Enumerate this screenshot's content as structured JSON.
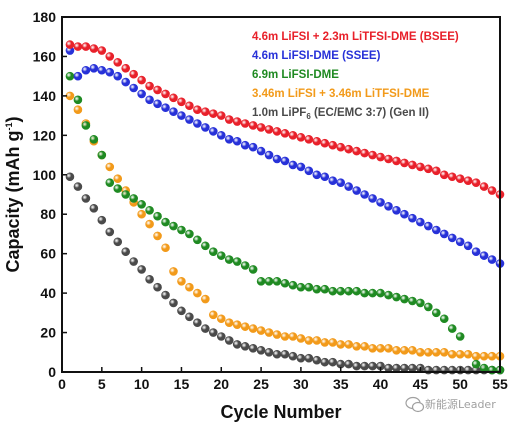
{
  "chart_data": {
    "type": "scatter",
    "xlabel": "Cycle Number",
    "ylabel": {
      "main": "Capacity (mAh g",
      "sup": "-1",
      "end": ")"
    },
    "xlim": [
      0,
      55
    ],
    "ylim": [
      0,
      180
    ],
    "xticks": [
      "0",
      "5",
      "10",
      "15",
      "20",
      "25",
      "30",
      "35",
      "40",
      "45",
      "50",
      "55"
    ],
    "yticks": [
      "0",
      "20",
      "40",
      "60",
      "80",
      "100",
      "120",
      "140",
      "160",
      "180"
    ],
    "legend_position": "top-right",
    "series": [
      {
        "legend": {
          "parts": [
            {
              "t": "4.6m LiFSI + 2.3m LiTFSI-DME (BSEE)"
            }
          ]
        },
        "color": "#e8202a",
        "values": [
          [
            1,
            166
          ],
          [
            2,
            165
          ],
          [
            3,
            165
          ],
          [
            4,
            164
          ],
          [
            5,
            163
          ],
          [
            6,
            160
          ],
          [
            7,
            157
          ],
          [
            8,
            154
          ],
          [
            9,
            151
          ],
          [
            10,
            148
          ],
          [
            11,
            145
          ],
          [
            12,
            143
          ],
          [
            13,
            141
          ],
          [
            14,
            139
          ],
          [
            15,
            137
          ],
          [
            16,
            135
          ],
          [
            17,
            133
          ],
          [
            18,
            132
          ],
          [
            19,
            131
          ],
          [
            20,
            130
          ],
          [
            21,
            128
          ],
          [
            22,
            127
          ],
          [
            23,
            126
          ],
          [
            24,
            125
          ],
          [
            25,
            124
          ],
          [
            26,
            123
          ],
          [
            27,
            122
          ],
          [
            28,
            121
          ],
          [
            29,
            120
          ],
          [
            30,
            119
          ],
          [
            31,
            118
          ],
          [
            32,
            117
          ],
          [
            33,
            116
          ],
          [
            34,
            115
          ],
          [
            35,
            114
          ],
          [
            36,
            113
          ],
          [
            37,
            112
          ],
          [
            38,
            111
          ],
          [
            39,
            110
          ],
          [
            40,
            109
          ],
          [
            41,
            108
          ],
          [
            42,
            107
          ],
          [
            43,
            106
          ],
          [
            44,
            105
          ],
          [
            45,
            104
          ],
          [
            46,
            103
          ],
          [
            47,
            102
          ],
          [
            48,
            100
          ],
          [
            49,
            99
          ],
          [
            50,
            98
          ],
          [
            51,
            97
          ],
          [
            52,
            96
          ],
          [
            53,
            94
          ],
          [
            54,
            92
          ],
          [
            55,
            90
          ]
        ]
      },
      {
        "legend": {
          "parts": [
            {
              "t": "4.6m LiFSI-DME (SSEE)"
            }
          ]
        },
        "color": "#2731d8",
        "values": [
          [
            1,
            163
          ],
          [
            2,
            150
          ],
          [
            3,
            153
          ],
          [
            4,
            154
          ],
          [
            5,
            153
          ],
          [
            6,
            152
          ],
          [
            7,
            150
          ],
          [
            8,
            147
          ],
          [
            9,
            144
          ],
          [
            10,
            141
          ],
          [
            11,
            138
          ],
          [
            12,
            136
          ],
          [
            13,
            134
          ],
          [
            14,
            132
          ],
          [
            15,
            130
          ],
          [
            16,
            128
          ],
          [
            17,
            126
          ],
          [
            18,
            124
          ],
          [
            19,
            122
          ],
          [
            20,
            120
          ],
          [
            21,
            118
          ],
          [
            22,
            117
          ],
          [
            23,
            115
          ],
          [
            24,
            114
          ],
          [
            25,
            112
          ],
          [
            26,
            110
          ],
          [
            27,
            108
          ],
          [
            28,
            107
          ],
          [
            29,
            105
          ],
          [
            30,
            104
          ],
          [
            31,
            102
          ],
          [
            32,
            100
          ],
          [
            33,
            99
          ],
          [
            34,
            97
          ],
          [
            35,
            96
          ],
          [
            36,
            94
          ],
          [
            37,
            92
          ],
          [
            38,
            90
          ],
          [
            39,
            88
          ],
          [
            40,
            86
          ],
          [
            41,
            84
          ],
          [
            42,
            82
          ],
          [
            43,
            80
          ],
          [
            44,
            78
          ],
          [
            45,
            76
          ],
          [
            46,
            74
          ],
          [
            47,
            72
          ],
          [
            48,
            70
          ],
          [
            49,
            68
          ],
          [
            50,
            66
          ],
          [
            51,
            64
          ],
          [
            52,
            61
          ],
          [
            53,
            59
          ],
          [
            54,
            57
          ],
          [
            55,
            55
          ]
        ]
      },
      {
        "legend": {
          "parts": [
            {
              "t": "6.9m LiFSI-DME"
            }
          ]
        },
        "color": "#1f8a22",
        "values": [
          [
            1,
            150
          ],
          [
            2,
            138
          ],
          [
            3,
            125
          ],
          [
            4,
            118
          ],
          [
            5,
            110
          ],
          [
            6,
            96
          ],
          [
            7,
            93
          ],
          [
            8,
            90
          ],
          [
            9,
            88
          ],
          [
            10,
            85
          ],
          [
            11,
            82
          ],
          [
            12,
            79
          ],
          [
            13,
            76
          ],
          [
            14,
            74
          ],
          [
            15,
            72
          ],
          [
            16,
            70
          ],
          [
            17,
            67
          ],
          [
            18,
            64
          ],
          [
            19,
            61
          ],
          [
            20,
            59
          ],
          [
            21,
            57
          ],
          [
            22,
            56
          ],
          [
            23,
            54
          ],
          [
            24,
            52
          ],
          [
            25,
            46
          ],
          [
            26,
            46
          ],
          [
            27,
            46
          ],
          [
            28,
            45
          ],
          [
            29,
            44
          ],
          [
            30,
            43
          ],
          [
            31,
            43
          ],
          [
            32,
            42
          ],
          [
            33,
            42
          ],
          [
            34,
            41
          ],
          [
            35,
            41
          ],
          [
            36,
            41
          ],
          [
            37,
            41
          ],
          [
            38,
            40
          ],
          [
            39,
            40
          ],
          [
            40,
            40
          ],
          [
            41,
            39
          ],
          [
            42,
            38
          ],
          [
            43,
            37
          ],
          [
            44,
            36
          ],
          [
            45,
            35
          ],
          [
            46,
            33
          ],
          [
            47,
            30
          ],
          [
            48,
            27
          ],
          [
            49,
            22
          ],
          [
            50,
            18
          ],
          [
            52,
            4
          ],
          [
            53,
            2
          ],
          [
            54,
            1
          ],
          [
            55,
            1
          ]
        ]
      },
      {
        "legend": {
          "parts": [
            {
              "t": "3.46m LiFSI + 3.46m LiTFSI-DME"
            }
          ]
        },
        "color": "#f29a1a",
        "values": [
          [
            1,
            140
          ],
          [
            2,
            133
          ],
          [
            3,
            126
          ],
          [
            4,
            117
          ],
          [
            5,
            110
          ],
          [
            6,
            104
          ],
          [
            7,
            98
          ],
          [
            8,
            92
          ],
          [
            9,
            86
          ],
          [
            10,
            80
          ],
          [
            11,
            75
          ],
          [
            12,
            69
          ],
          [
            13,
            63
          ],
          [
            14,
            51
          ],
          [
            15,
            46
          ],
          [
            16,
            43
          ],
          [
            17,
            40
          ],
          [
            18,
            37
          ],
          [
            19,
            29
          ],
          [
            20,
            27
          ],
          [
            21,
            25
          ],
          [
            22,
            24
          ],
          [
            23,
            23
          ],
          [
            24,
            22
          ],
          [
            25,
            21
          ],
          [
            26,
            20
          ],
          [
            27,
            19
          ],
          [
            28,
            18
          ],
          [
            29,
            18
          ],
          [
            30,
            17
          ],
          [
            31,
            16
          ],
          [
            32,
            16
          ],
          [
            33,
            15
          ],
          [
            34,
            15
          ],
          [
            35,
            14
          ],
          [
            36,
            14
          ],
          [
            37,
            13
          ],
          [
            38,
            13
          ],
          [
            39,
            12
          ],
          [
            40,
            12
          ],
          [
            41,
            12
          ],
          [
            42,
            11
          ],
          [
            43,
            11
          ],
          [
            44,
            11
          ],
          [
            45,
            10
          ],
          [
            46,
            10
          ],
          [
            47,
            10
          ],
          [
            48,
            10
          ],
          [
            49,
            9
          ],
          [
            50,
            9
          ],
          [
            51,
            9
          ],
          [
            52,
            8
          ],
          [
            53,
            8
          ],
          [
            54,
            8
          ],
          [
            55,
            8
          ]
        ]
      },
      {
        "legend": {
          "parts": [
            {
              "t": "1.0m LiPF"
            },
            {
              "t": "6",
              "k": "sub"
            },
            {
              "t": " (EC/EMC 3:7) (Gen II)"
            }
          ]
        },
        "color": "#4a4a4a",
        "values": [
          [
            1,
            99
          ],
          [
            2,
            94
          ],
          [
            3,
            88
          ],
          [
            4,
            83
          ],
          [
            5,
            77
          ],
          [
            6,
            71
          ],
          [
            7,
            66
          ],
          [
            8,
            61
          ],
          [
            9,
            56
          ],
          [
            10,
            52
          ],
          [
            11,
            47
          ],
          [
            12,
            43
          ],
          [
            13,
            39
          ],
          [
            14,
            35
          ],
          [
            15,
            31
          ],
          [
            16,
            28
          ],
          [
            17,
            25
          ],
          [
            18,
            22
          ],
          [
            19,
            20
          ],
          [
            20,
            18
          ],
          [
            21,
            16
          ],
          [
            22,
            14
          ],
          [
            23,
            13
          ],
          [
            24,
            12
          ],
          [
            25,
            11
          ],
          [
            26,
            10
          ],
          [
            27,
            9
          ],
          [
            28,
            9
          ],
          [
            29,
            8
          ],
          [
            30,
            7
          ],
          [
            31,
            7
          ],
          [
            32,
            6
          ],
          [
            33,
            5
          ],
          [
            34,
            5
          ],
          [
            35,
            4
          ],
          [
            36,
            4
          ],
          [
            37,
            3
          ],
          [
            38,
            3
          ],
          [
            39,
            3
          ],
          [
            40,
            3
          ],
          [
            41,
            2
          ],
          [
            42,
            2
          ],
          [
            43,
            2
          ],
          [
            44,
            2
          ],
          [
            45,
            2
          ],
          [
            46,
            1
          ],
          [
            47,
            1
          ],
          [
            48,
            1
          ],
          [
            49,
            1
          ],
          [
            50,
            1
          ],
          [
            51,
            1
          ],
          [
            52,
            1
          ],
          [
            53,
            1
          ],
          [
            54,
            1
          ],
          [
            55,
            1
          ]
        ]
      }
    ]
  },
  "watermark": {
    "text": "新能源Leader",
    "icon": "wechat-icon"
  }
}
